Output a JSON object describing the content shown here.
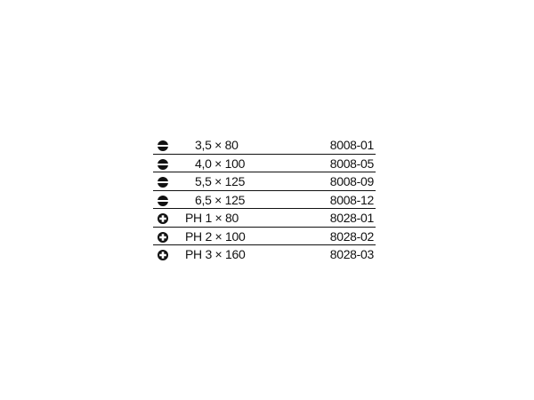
{
  "rows": [
    {
      "type": "slotted",
      "icon": "slotted-tip-icon",
      "size": "3,5 × 80",
      "code": "8008-01"
    },
    {
      "type": "slotted",
      "icon": "slotted-tip-icon",
      "size": "4,0 × 100",
      "code": "8008-05"
    },
    {
      "type": "slotted",
      "icon": "slotted-tip-icon",
      "size": "5,5 × 125",
      "code": "8008-09"
    },
    {
      "type": "slotted",
      "icon": "slotted-tip-icon",
      "size": "6,5 × 125",
      "code": "8008-12"
    },
    {
      "type": "phillips",
      "icon": "phillips-tip-icon",
      "size": "PH 1 × 80",
      "code": "8028-01"
    },
    {
      "type": "phillips",
      "icon": "phillips-tip-icon",
      "size": "PH 2 × 100",
      "code": "8028-02"
    },
    {
      "type": "phillips",
      "icon": "phillips-tip-icon",
      "size": "PH 3 × 160",
      "code": "8028-03"
    }
  ]
}
